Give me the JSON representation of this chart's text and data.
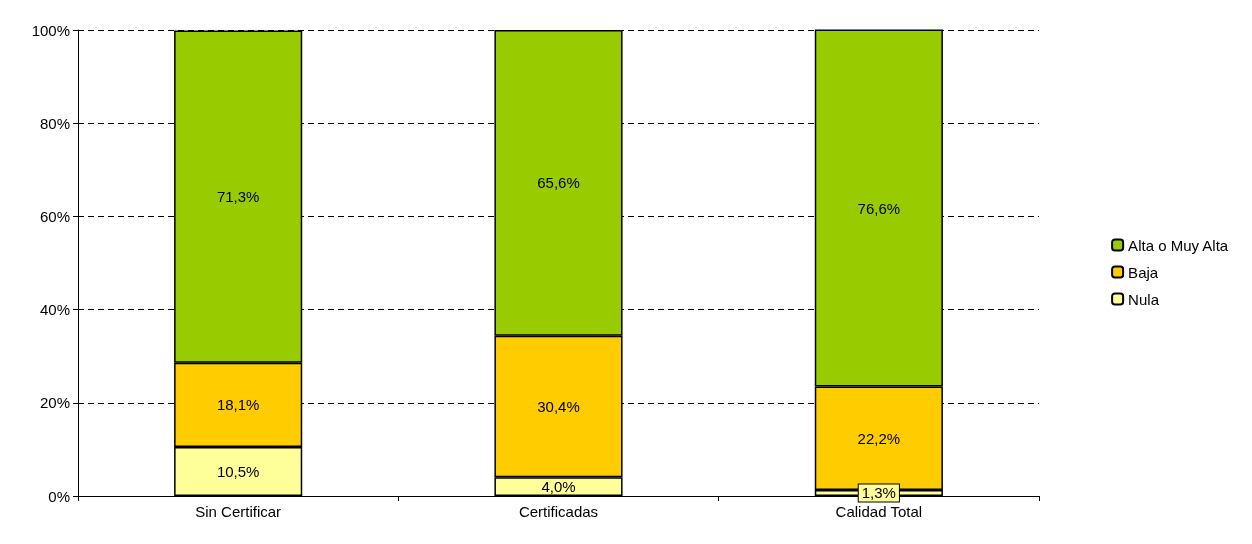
{
  "chart_data": {
    "type": "bar",
    "stacked": true,
    "categories": [
      "Sin Certificar",
      "Certificadas",
      "Calidad Total"
    ],
    "series": [
      {
        "name": "Nula",
        "color": "#ffff99",
        "values": [
          10.5,
          4.0,
          1.3
        ],
        "value_labels": [
          "10,5%",
          "4,0%",
          "1,3%"
        ]
      },
      {
        "name": "Baja",
        "color": "#ffcc00",
        "values": [
          18.1,
          30.4,
          22.2
        ],
        "value_labels": [
          "18,1%",
          "30,4%",
          "22,2%"
        ]
      },
      {
        "name": "Alta o Muy Alta",
        "color": "#99cc00",
        "values": [
          71.3,
          65.6,
          76.6
        ],
        "value_labels": [
          "71,3%",
          "65,6%",
          "76,6%"
        ]
      }
    ],
    "ylim": [
      0,
      100
    ],
    "yticks": [
      {
        "value": 0,
        "label": "0%"
      },
      {
        "value": 20,
        "label": "20%"
      },
      {
        "value": 40,
        "label": "40%"
      },
      {
        "value": 60,
        "label": "60%"
      },
      {
        "value": 80,
        "label": "80%"
      },
      {
        "value": 100,
        "label": "100%"
      }
    ],
    "grid": "y",
    "legend": "right"
  }
}
